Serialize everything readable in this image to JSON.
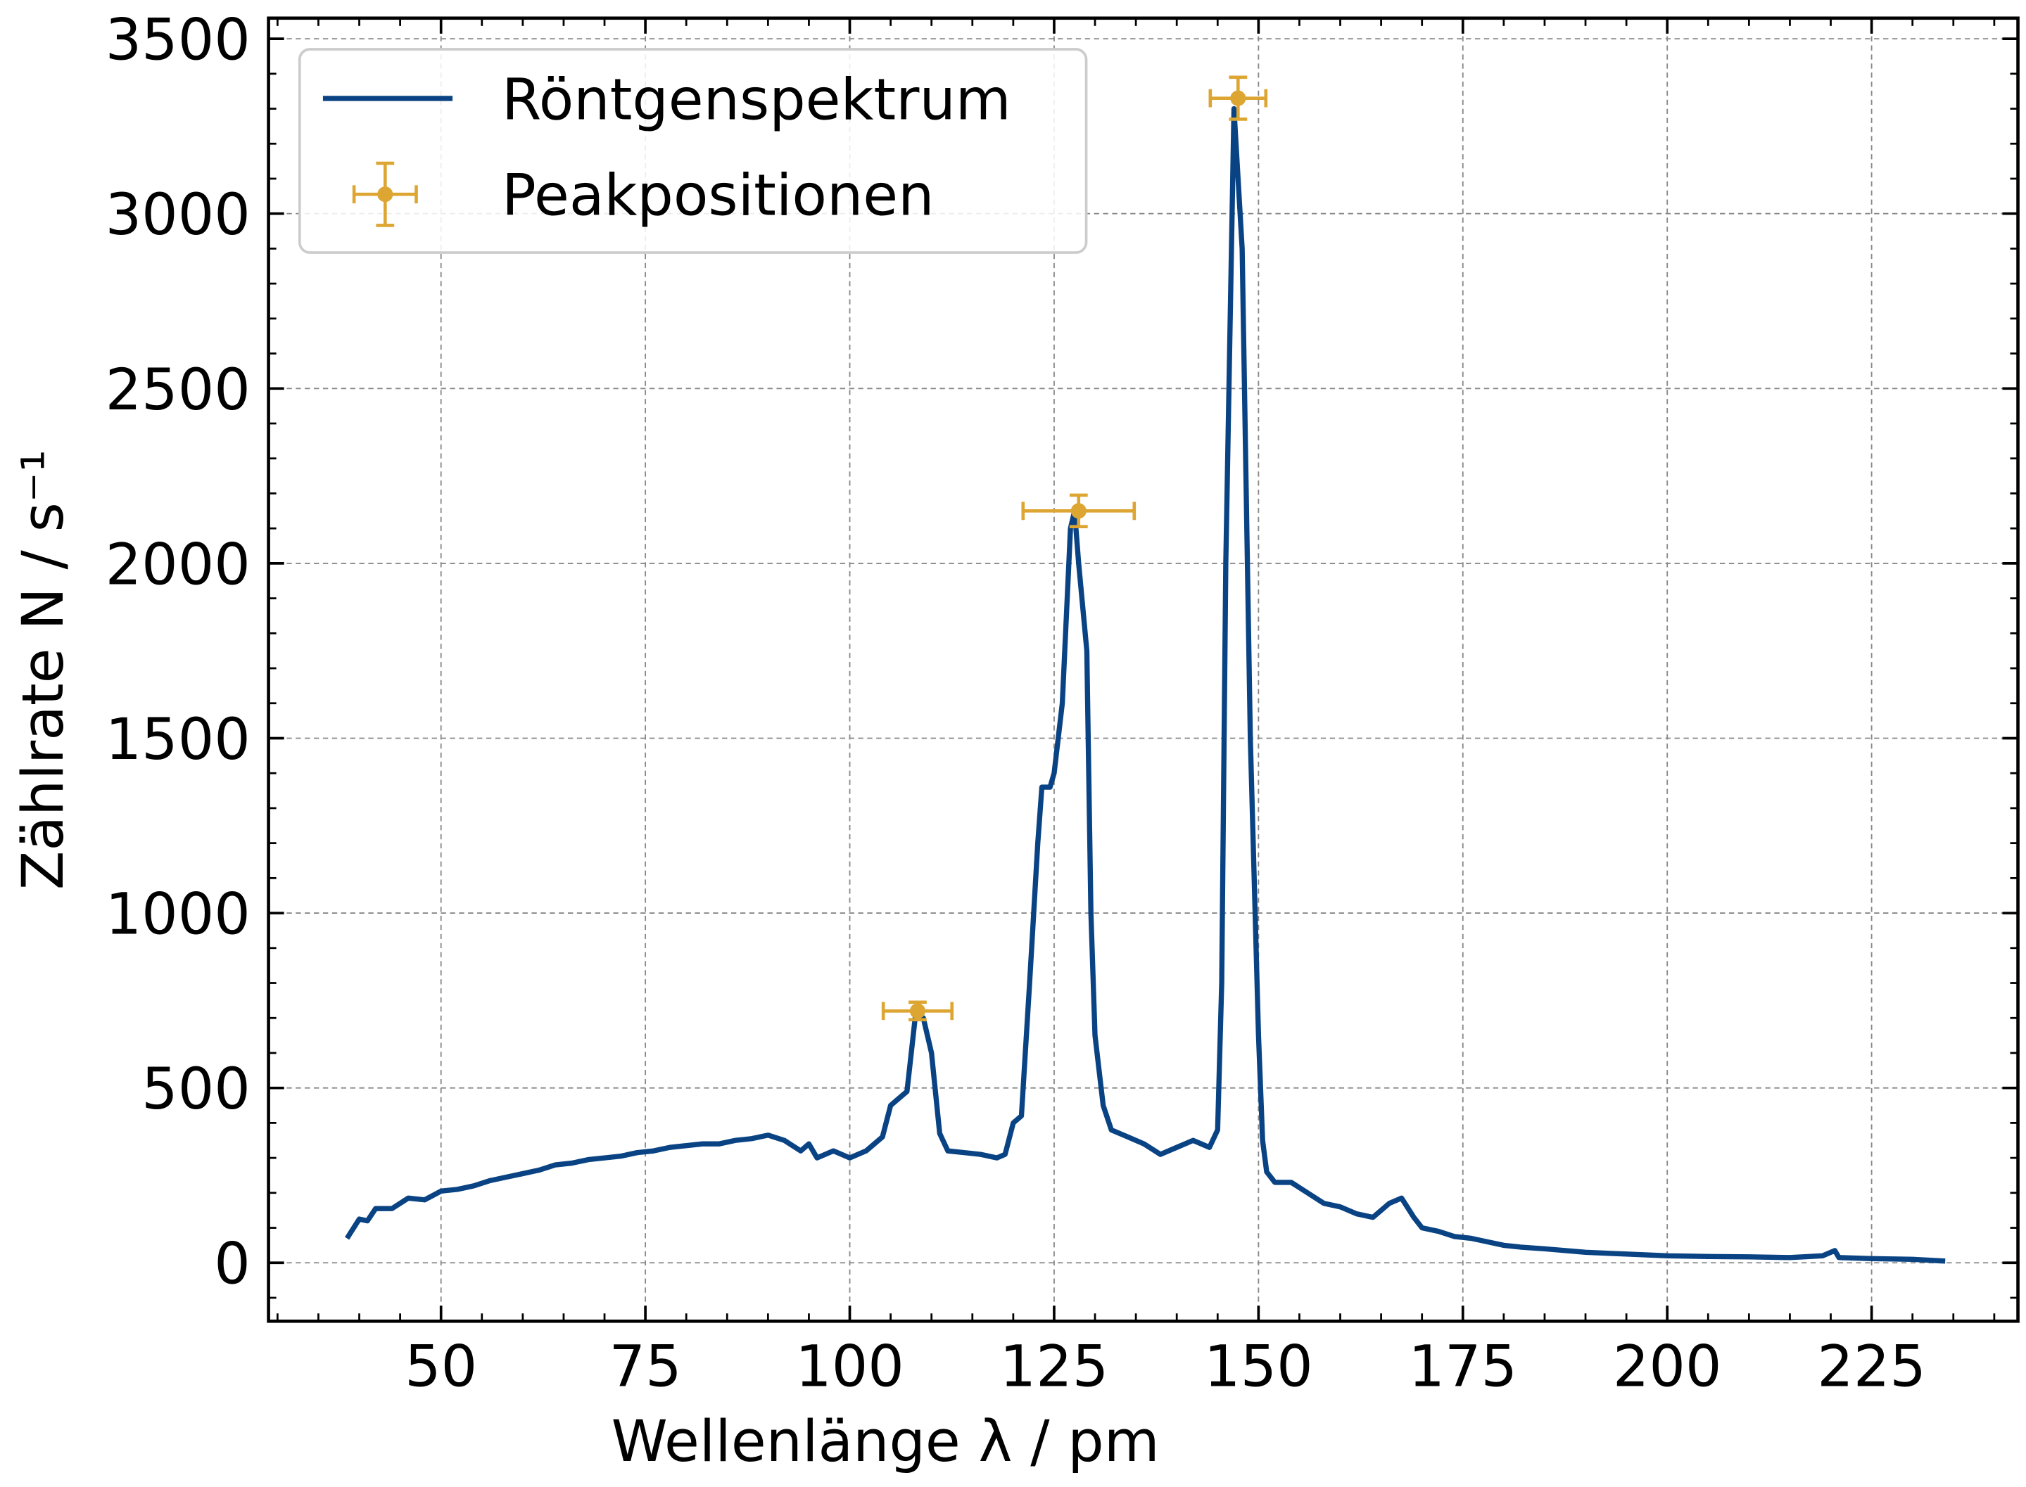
{
  "chart_data": {
    "type": "line",
    "xlabel": "Wellenlänge λ / pm",
    "ylabel": "Zählrate N / s⁻¹",
    "xlim": [
      28.9,
      242.9
    ],
    "ylim": [
      -167,
      3559
    ],
    "xticks": [
      50,
      75,
      100,
      125,
      150,
      175,
      200,
      225
    ],
    "yticks": [
      0,
      500,
      1000,
      1500,
      2000,
      2500,
      3000,
      3500
    ],
    "grid": true,
    "legend": "upper left",
    "series": [
      {
        "name": "Röntgenspektrum",
        "type": "line",
        "color": "#0a4383",
        "x": [
          38.5,
          40,
          41,
          42,
          44,
          46,
          48,
          50,
          52,
          54,
          56,
          58,
          60,
          62,
          64,
          66,
          68,
          70,
          72,
          74,
          76,
          78,
          80,
          82,
          84,
          86,
          88,
          90,
          92,
          94,
          95,
          96,
          98,
          100,
          102,
          104,
          105,
          106,
          107,
          108,
          109,
          110,
          111,
          112,
          114,
          116,
          118,
          119,
          120,
          121,
          122,
          123,
          123.5,
          124.5,
          125,
          126,
          127,
          127.5,
          128,
          129,
          129.5,
          130,
          131,
          132,
          134,
          136,
          138,
          140,
          142,
          144,
          145,
          145.5,
          146,
          147,
          148,
          149,
          150,
          150.5,
          151,
          152,
          154,
          156,
          158,
          160,
          162,
          164,
          166,
          167.5,
          169,
          170,
          172,
          174,
          176,
          178,
          180,
          182,
          185,
          190,
          195,
          200,
          205,
          210,
          215,
          219,
          220.5,
          221,
          225,
          230,
          234
        ],
        "values": [
          70,
          125,
          120,
          155,
          155,
          185,
          180,
          205,
          210,
          220,
          235,
          245,
          255,
          265,
          280,
          285,
          295,
          300,
          305,
          315,
          320,
          330,
          335,
          340,
          340,
          350,
          355,
          365,
          350,
          320,
          340,
          300,
          320,
          300,
          320,
          360,
          450,
          470,
          490,
          700,
          700,
          600,
          370,
          320,
          315,
          310,
          300,
          310,
          400,
          420,
          800,
          1200,
          1360,
          1360,
          1400,
          1600,
          2100,
          2150,
          2000,
          1750,
          1000,
          650,
          450,
          380,
          360,
          340,
          310,
          330,
          350,
          330,
          380,
          800,
          2000,
          3300,
          2900,
          1500,
          650,
          350,
          260,
          230,
          230,
          200,
          170,
          160,
          140,
          130,
          170,
          185,
          130,
          100,
          90,
          75,
          70,
          60,
          50,
          45,
          40,
          30,
          25,
          20,
          18,
          17,
          15,
          20,
          35,
          15,
          12,
          10,
          5
        ]
      },
      {
        "name": "Peakpositionen",
        "type": "errorbar",
        "color": "#dda532",
        "x": [
          108.3,
          128,
          147.5
        ],
        "values": [
          720,
          2150,
          3330
        ],
        "xerr": [
          4.2,
          6.8,
          3.4
        ],
        "yerr": [
          25,
          45,
          60
        ]
      }
    ]
  }
}
